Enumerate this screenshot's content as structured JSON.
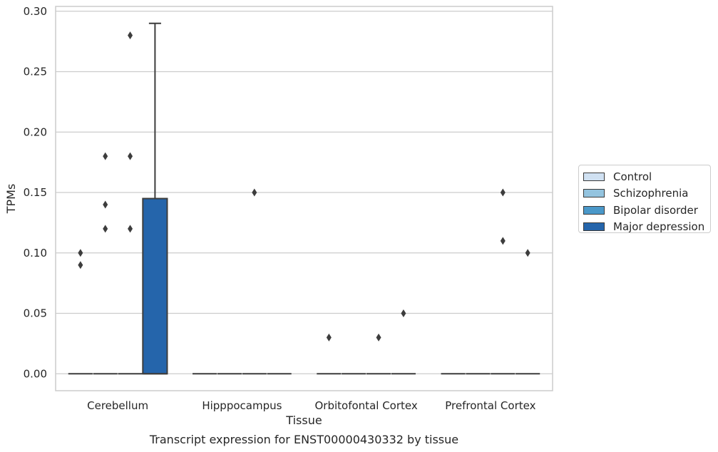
{
  "chart_data": {
    "type": "box",
    "title": "Transcript expression for ENST00000430332 by tissue",
    "xlabel": "Tissue",
    "ylabel": "TPMs",
    "categories": [
      "Cerebellum",
      "Hipppocampus",
      "Orbitofontal Cortex",
      "Prefrontal Cortex"
    ],
    "ylim": [
      -0.014,
      0.304
    ],
    "yticks": [
      0.0,
      0.05,
      0.1,
      0.15,
      0.2,
      0.25,
      0.3
    ],
    "ytick_labels": [
      "0.00",
      "0.05",
      "0.10",
      "0.15",
      "0.20",
      "0.25",
      "0.30"
    ],
    "grid": true,
    "legend_position": "outside-right",
    "series": [
      {
        "name": "Control",
        "color": "#d0e1f2",
        "boxes": [
          {
            "q1": 0,
            "median": 0,
            "q3": 0,
            "whisker_low": 0,
            "whisker_high": 0,
            "outliers": [
              0.09,
              0.1
            ]
          },
          {
            "q1": 0,
            "median": 0,
            "q3": 0,
            "whisker_low": 0,
            "whisker_high": 0,
            "outliers": []
          },
          {
            "q1": 0,
            "median": 0,
            "q3": 0,
            "whisker_low": 0,
            "whisker_high": 0,
            "outliers": [
              0.03
            ]
          },
          {
            "q1": 0,
            "median": 0,
            "q3": 0,
            "whisker_low": 0,
            "whisker_high": 0,
            "outliers": []
          }
        ]
      },
      {
        "name": "Schizophrenia",
        "color": "#94c4df",
        "boxes": [
          {
            "q1": 0,
            "median": 0,
            "q3": 0,
            "whisker_low": 0,
            "whisker_high": 0,
            "outliers": [
              0.12,
              0.14,
              0.18
            ]
          },
          {
            "q1": 0,
            "median": 0,
            "q3": 0,
            "whisker_low": 0,
            "whisker_high": 0,
            "outliers": []
          },
          {
            "q1": 0,
            "median": 0,
            "q3": 0,
            "whisker_low": 0,
            "whisker_high": 0,
            "outliers": []
          },
          {
            "q1": 0,
            "median": 0,
            "q3": 0,
            "whisker_low": 0,
            "whisker_high": 0,
            "outliers": []
          }
        ]
      },
      {
        "name": "Bipolar disorder",
        "color": "#4a98c9",
        "boxes": [
          {
            "q1": 0,
            "median": 0,
            "q3": 0,
            "whisker_low": 0,
            "whisker_high": 0,
            "outliers": [
              0.12,
              0.18,
              0.28
            ]
          },
          {
            "q1": 0,
            "median": 0,
            "q3": 0,
            "whisker_low": 0,
            "whisker_high": 0,
            "outliers": [
              0.15
            ]
          },
          {
            "q1": 0,
            "median": 0,
            "q3": 0,
            "whisker_low": 0,
            "whisker_high": 0,
            "outliers": [
              0.03
            ]
          },
          {
            "q1": 0,
            "median": 0,
            "q3": 0,
            "whisker_low": 0,
            "whisker_high": 0,
            "outliers": [
              0.11,
              0.15
            ]
          }
        ]
      },
      {
        "name": "Major depression",
        "color": "#2565ab",
        "boxes": [
          {
            "q1": 0,
            "median": 0,
            "q3": 0.145,
            "whisker_low": 0,
            "whisker_high": 0.29,
            "outliers": []
          },
          {
            "q1": 0,
            "median": 0,
            "q3": 0,
            "whisker_low": 0,
            "whisker_high": 0,
            "outliers": []
          },
          {
            "q1": 0,
            "median": 0,
            "q3": 0,
            "whisker_low": 0,
            "whisker_high": 0,
            "outliers": [
              0.05
            ]
          },
          {
            "q1": 0,
            "median": 0,
            "q3": 0,
            "whisker_low": 0,
            "whisker_high": 0,
            "outliers": [
              0.1
            ]
          }
        ]
      }
    ]
  }
}
